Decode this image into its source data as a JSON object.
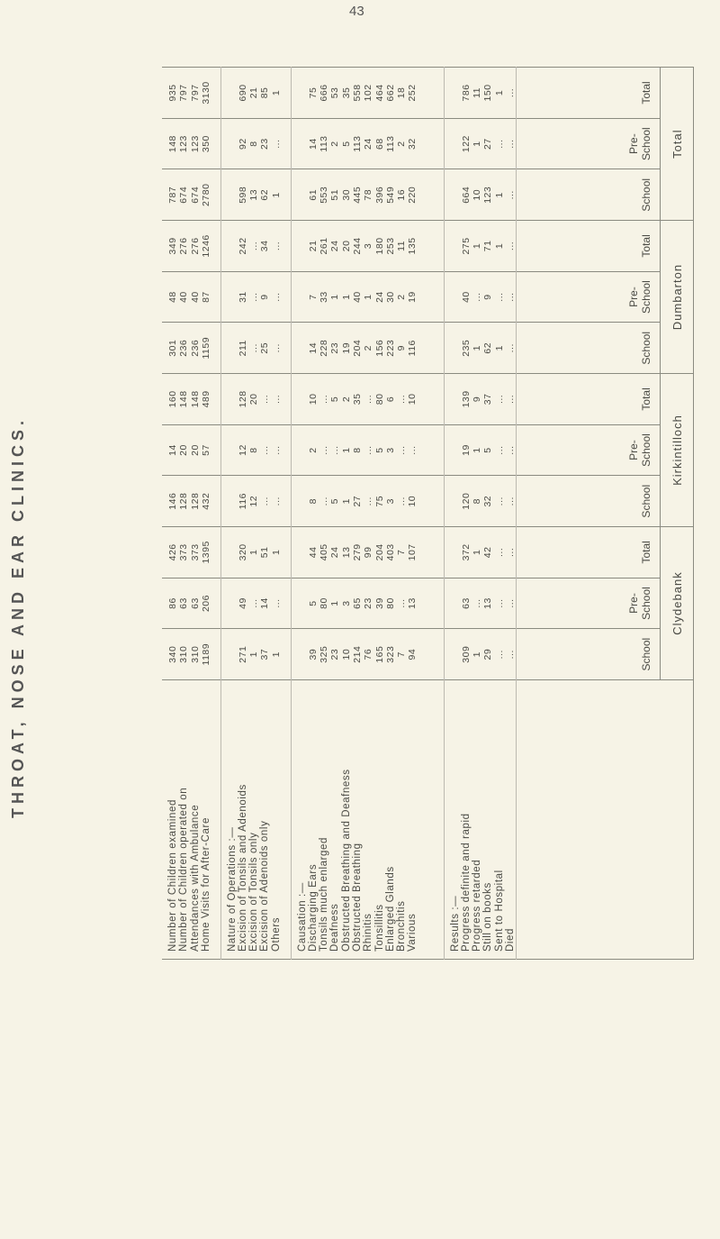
{
  "page_number": "43",
  "title": "THROAT, NOSE AND EAR CLINICS.",
  "labels": {
    "summary": [
      "Number of Children examined",
      "Number of Children operated on",
      "Attendances with Ambulance",
      "Home Visits for After-Care"
    ],
    "operations_heading": "Nature of Operations :—",
    "operations": [
      "Excision of Tonsils and Adenoids",
      "Excision of Tonsils only",
      "Excision of Adenoids only",
      "Others"
    ],
    "causation_heading": "Causation :—",
    "causation": [
      "Discharging Ears",
      "Tonsils much enlarged",
      "Deafness",
      "Obstructed Breathing and Deafness",
      "Obstructed Breathing",
      "Rhinitis",
      "Tonsillitis",
      "Enlarged Glands",
      "Bronchitis",
      "Various"
    ],
    "results_heading": "Results :—",
    "results": [
      "Progress definite and rapid",
      "Progress retarded",
      "Still on books",
      "Sent to Hospital",
      "Died"
    ]
  },
  "groups": [
    {
      "name": "Clydebank",
      "columns": [
        {
          "header": [
            "School"
          ],
          "summary": [
            "340",
            "310",
            "310",
            "1189"
          ],
          "operations": [
            "271",
            "1",
            "37",
            "1"
          ],
          "causation": [
            "39",
            "325",
            "23",
            "10",
            "214",
            "76",
            "165",
            "323",
            "7",
            "94"
          ],
          "results": [
            "309",
            "1",
            "29",
            "...",
            "..."
          ]
        },
        {
          "header": [
            "Pre-",
            "School"
          ],
          "summary": [
            "86",
            "63",
            "63",
            "206"
          ],
          "operations": [
            "49",
            "...",
            "14",
            "..."
          ],
          "causation": [
            "5",
            "80",
            "1",
            "3",
            "65",
            "23",
            "39",
            "80",
            "...",
            "13"
          ],
          "results": [
            "63",
            "...",
            "13",
            "...",
            "..."
          ]
        },
        {
          "header": [
            "Total"
          ],
          "summary": [
            "426",
            "373",
            "373",
            "1395"
          ],
          "operations": [
            "320",
            "1",
            "51",
            "1"
          ],
          "causation": [
            "44",
            "405",
            "24",
            "13",
            "279",
            "99",
            "204",
            "403",
            "7",
            "107"
          ],
          "results": [
            "372",
            "1",
            "42",
            "...",
            "..."
          ]
        }
      ]
    },
    {
      "name": "Kirkintilloch",
      "columns": [
        {
          "header": [
            "School"
          ],
          "summary": [
            "146",
            "128",
            "128",
            "432"
          ],
          "operations": [
            "116",
            "12",
            "...",
            "..."
          ],
          "causation": [
            "8",
            "...",
            "5",
            "1",
            "27",
            "...",
            "75",
            "3",
            "...",
            "10"
          ],
          "results": [
            "120",
            "8",
            "32",
            "...",
            "..."
          ]
        },
        {
          "header": [
            "Pre-",
            "School"
          ],
          "summary": [
            "14",
            "20",
            "20",
            "57"
          ],
          "operations": [
            "12",
            "8",
            "...",
            "..."
          ],
          "causation": [
            "2",
            "...",
            "...",
            "1",
            "8",
            "...",
            "5",
            "3",
            "...",
            "..."
          ],
          "results": [
            "19",
            "1",
            "5",
            "...",
            "..."
          ]
        },
        {
          "header": [
            "Total"
          ],
          "summary": [
            "160",
            "148",
            "148",
            "489"
          ],
          "operations": [
            "128",
            "20",
            "...",
            "..."
          ],
          "causation": [
            "10",
            "...",
            "5",
            "2",
            "35",
            "...",
            "80",
            "6",
            "...",
            "10"
          ],
          "results": [
            "139",
            "9",
            "37",
            "...",
            "..."
          ]
        }
      ]
    },
    {
      "name": "Dumbarton",
      "columns": [
        {
          "header": [
            "School"
          ],
          "summary": [
            "301",
            "236",
            "236",
            "1159"
          ],
          "operations": [
            "211",
            "...",
            "25",
            "..."
          ],
          "causation": [
            "14",
            "228",
            "23",
            "19",
            "204",
            "2",
            "156",
            "223",
            "9",
            "116"
          ],
          "results": [
            "235",
            "1",
            "62",
            "1",
            "..."
          ]
        },
        {
          "header": [
            "Pre-",
            "School"
          ],
          "summary": [
            "48",
            "40",
            "40",
            "87"
          ],
          "operations": [
            "31",
            "...",
            "9",
            "..."
          ],
          "causation": [
            "7",
            "33",
            "1",
            "1",
            "40",
            "1",
            "24",
            "30",
            "2",
            "19"
          ],
          "results": [
            "40",
            "...",
            "9",
            "...",
            "..."
          ]
        },
        {
          "header": [
            "Total"
          ],
          "summary": [
            "349",
            "276",
            "276",
            "1246"
          ],
          "operations": [
            "242",
            "...",
            "34",
            "..."
          ],
          "causation": [
            "21",
            "261",
            "24",
            "20",
            "244",
            "3",
            "180",
            "253",
            "11",
            "135"
          ],
          "results": [
            "275",
            "1",
            "71",
            "1",
            "..."
          ]
        }
      ]
    },
    {
      "name": "Total",
      "columns": [
        {
          "header": [
            "School"
          ],
          "summary": [
            "787",
            "674",
            "674",
            "2780"
          ],
          "operations": [
            "598",
            "13",
            "62",
            "1"
          ],
          "causation": [
            "61",
            "553",
            "51",
            "30",
            "445",
            "78",
            "396",
            "549",
            "16",
            "220"
          ],
          "results": [
            "664",
            "10",
            "123",
            "1",
            "..."
          ]
        },
        {
          "header": [
            "Pre-",
            "School"
          ],
          "summary": [
            "148",
            "123",
            "123",
            "350"
          ],
          "operations": [
            "92",
            "8",
            "23",
            "..."
          ],
          "causation": [
            "14",
            "113",
            "2",
            "5",
            "113",
            "24",
            "68",
            "113",
            "2",
            "32"
          ],
          "results": [
            "122",
            "1",
            "27",
            "...",
            "..."
          ]
        },
        {
          "header": [
            "Total"
          ],
          "summary": [
            "935",
            "797",
            "797",
            "3130"
          ],
          "operations": [
            "690",
            "21",
            "85",
            "1"
          ],
          "causation": [
            "75",
            "666",
            "53",
            "35",
            "558",
            "102",
            "464",
            "662",
            "18",
            "252"
          ],
          "results": [
            "786",
            "11",
            "150",
            "1",
            "..."
          ]
        }
      ]
    }
  ]
}
